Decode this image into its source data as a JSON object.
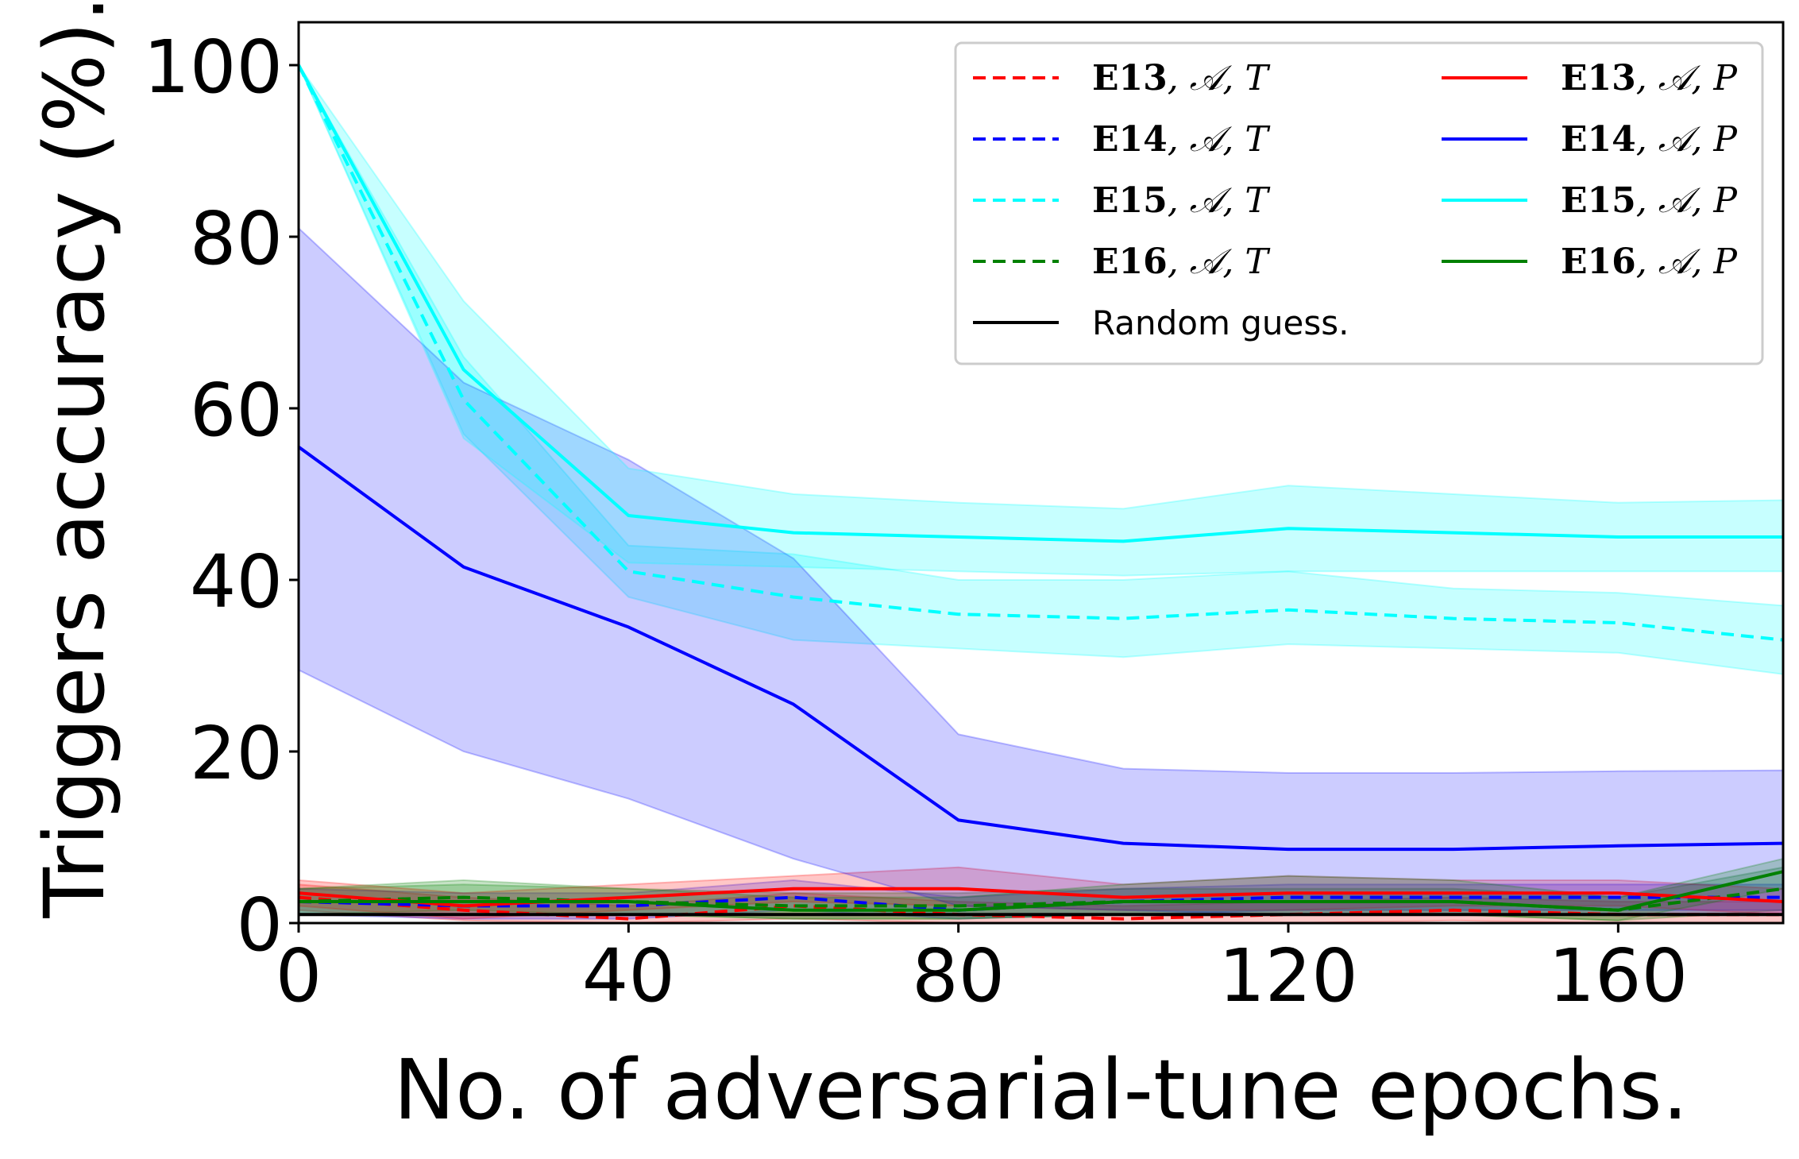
{
  "chart_data": {
    "type": "line",
    "title": "",
    "xlabel": "No. of adversarial-tune epochs.",
    "ylabel": "Triggers accuracy (%).",
    "xlim": [
      0,
      180
    ],
    "ylim": [
      0,
      105
    ],
    "xticks": [
      0,
      40,
      80,
      120,
      160
    ],
    "yticks": [
      0,
      20,
      40,
      60,
      80,
      100
    ],
    "x": [
      0,
      20,
      40,
      60,
      80,
      100,
      120,
      140,
      160,
      180
    ],
    "legend_position": "top-right",
    "series": [
      {
        "name": "E13, A, T",
        "color": "#ff0000",
        "dash": true,
        "values": [
          3,
          1.5,
          0.5,
          2,
          1,
          0.5,
          1,
          1.5,
          1,
          1
        ],
        "lower": [
          1.5,
          0.3,
          0,
          0.5,
          0,
          0,
          0,
          0.3,
          0,
          0
        ],
        "upper": [
          4.5,
          3,
          2,
          3.5,
          2.5,
          2,
          2.5,
          3,
          2.5,
          2.5
        ]
      },
      {
        "name": "E14, A, T",
        "color": "#0000ff",
        "dash": true,
        "values": [
          2.5,
          2,
          2,
          3,
          1.5,
          2.5,
          3,
          3,
          3,
          3
        ],
        "lower": [
          1,
          0.5,
          0.5,
          1.5,
          0.5,
          1,
          1.5,
          1.5,
          1.5,
          1.5
        ],
        "upper": [
          4,
          3.5,
          3.5,
          5,
          3,
          4,
          4.5,
          4.5,
          4.5,
          4.5
        ]
      },
      {
        "name": "E15, A, T",
        "color": "#00ffff",
        "dash": true,
        "values": [
          100,
          61,
          41,
          38,
          36,
          35.5,
          36.5,
          35.5,
          35,
          33
        ],
        "lower": [
          100,
          57,
          38,
          33,
          32,
          31,
          32.5,
          32,
          31.5,
          29
        ],
        "upper": [
          100,
          66,
          44,
          43,
          40,
          40,
          41,
          39,
          38.5,
          37
        ]
      },
      {
        "name": "E16, A, T",
        "color": "#008000",
        "dash": true,
        "values": [
          2.5,
          3,
          2.5,
          2,
          2,
          2.5,
          2.5,
          2.5,
          1.5,
          4
        ],
        "lower": [
          1,
          1.5,
          1,
          0.5,
          0.5,
          1,
          1,
          1,
          0.3,
          1.5
        ],
        "upper": [
          4,
          4.5,
          4,
          3.5,
          3.5,
          4,
          4,
          4,
          3,
          6.5
        ]
      },
      {
        "name": "E13, A, P",
        "color": "#ff0000",
        "dash": false,
        "values": [
          3.5,
          2,
          3,
          4,
          4,
          3,
          3.5,
          3.5,
          3.5,
          2.5
        ],
        "lower": [
          2,
          0.5,
          1.5,
          2.5,
          2,
          1.5,
          1.5,
          2,
          2,
          1
        ],
        "upper": [
          5,
          3.5,
          4.5,
          5.5,
          6.5,
          4.5,
          5.5,
          5,
          5,
          4
        ]
      },
      {
        "name": "E14, A, P",
        "color": "#0000ff",
        "dash": false,
        "values": [
          55.5,
          41.5,
          34.5,
          25.5,
          12,
          9.3,
          8.6,
          8.6,
          9,
          9.3
        ],
        "lower": [
          29.5,
          20,
          14.5,
          7.5,
          2,
          1.5,
          1,
          1,
          1,
          1
        ],
        "upper": [
          81,
          63,
          54,
          42.5,
          22,
          18,
          17.5,
          17.5,
          17.7,
          17.8
        ]
      },
      {
        "name": "E15, A, P",
        "color": "#00ffff",
        "dash": false,
        "values": [
          100,
          64.5,
          47.5,
          45.5,
          45,
          44.5,
          46,
          45.5,
          45,
          45
        ],
        "lower": [
          100,
          56.5,
          42,
          41.5,
          41,
          40.5,
          41,
          41,
          41,
          41
        ],
        "upper": [
          100,
          72.5,
          53,
          50,
          49,
          48.3,
          51,
          50,
          49,
          49.3
        ]
      },
      {
        "name": "E16, A, P",
        "color": "#008000",
        "dash": false,
        "values": [
          2.5,
          2.5,
          2.5,
          1.5,
          1.5,
          2.5,
          2.5,
          2.5,
          1.5,
          6
        ],
        "lower": [
          1,
          1,
          1,
          0.5,
          0.5,
          1,
          1,
          1,
          0.3,
          4
        ],
        "upper": [
          4,
          5,
          4,
          3,
          3,
          4.5,
          5.5,
          5,
          3,
          7.5
        ]
      },
      {
        "name": "Random guess.",
        "color": "#000000",
        "dash": false,
        "values": [
          1,
          1,
          1,
          1,
          1,
          1,
          1,
          1,
          1,
          1
        ]
      }
    ],
    "legend": [
      {
        "label": "E13, 𝒜, T",
        "color": "#ff0000",
        "dash": true
      },
      {
        "label": "E14, 𝒜, T",
        "color": "#0000ff",
        "dash": true
      },
      {
        "label": "E15, 𝒜, T",
        "color": "#00ffff",
        "dash": true
      },
      {
        "label": "E16, 𝒜, T",
        "color": "#008000",
        "dash": true
      },
      {
        "label": "Random guess.",
        "color": "#000000",
        "dash": false
      },
      {
        "label": "E13, 𝒜, P",
        "color": "#ff0000",
        "dash": false
      },
      {
        "label": "E14, 𝒜, P",
        "color": "#0000ff",
        "dash": false
      },
      {
        "label": "E15, 𝒜, P",
        "color": "#00ffff",
        "dash": false
      },
      {
        "label": "E16, 𝒜, P",
        "color": "#008000",
        "dash": false
      }
    ]
  }
}
